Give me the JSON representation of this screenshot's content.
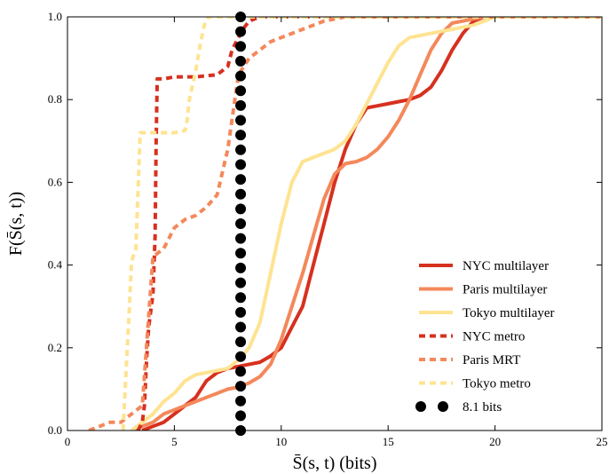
{
  "chart_data": {
    "type": "line",
    "xlabel": "S̄(s, t) (bits)",
    "ylabel": "F(S̄(s, t))",
    "xlim": [
      0,
      25
    ],
    "ylim": [
      0,
      1.0
    ],
    "xticks": [
      "0",
      "5",
      "10",
      "15",
      "20",
      "25"
    ],
    "yticks": [
      "0.0",
      "0.2",
      "0.4",
      "0.6",
      "0.8",
      "1.0"
    ],
    "grid": false,
    "legend_position": "lower-right",
    "series": [
      {
        "name": "NYC multilayer",
        "color": "#d7301f",
        "style": "solid",
        "x": [
          3.5,
          4.0,
          4.5,
          5.0,
          5.5,
          6.0,
          6.5,
          7.0,
          7.5,
          8.0,
          8.5,
          9.0,
          9.5,
          10.0,
          10.5,
          11.0,
          11.5,
          12.0,
          12.5,
          13.0,
          13.5,
          14.0,
          14.5,
          15.0,
          15.5,
          16.0,
          16.5,
          17.0,
          17.5,
          18.0,
          18.5,
          19.0,
          19.5,
          20.0,
          25.0
        ],
        "y": [
          0.0,
          0.01,
          0.02,
          0.04,
          0.06,
          0.08,
          0.12,
          0.14,
          0.15,
          0.155,
          0.16,
          0.165,
          0.18,
          0.2,
          0.25,
          0.3,
          0.4,
          0.5,
          0.6,
          0.68,
          0.74,
          0.78,
          0.785,
          0.79,
          0.795,
          0.8,
          0.81,
          0.83,
          0.87,
          0.92,
          0.96,
          0.99,
          1.0,
          1.0,
          1.0
        ]
      },
      {
        "name": "Paris multilayer",
        "color": "#f4885b",
        "style": "solid",
        "x": [
          3.0,
          3.5,
          4.0,
          4.5,
          5.0,
          5.5,
          6.0,
          6.5,
          7.0,
          7.5,
          8.0,
          8.5,
          9.0,
          9.5,
          10.0,
          10.5,
          11.0,
          11.5,
          12.0,
          12.5,
          13.0,
          13.5,
          14.0,
          14.5,
          15.0,
          15.5,
          16.0,
          16.5,
          17.0,
          17.5,
          18.0,
          18.5,
          19.0,
          19.5,
          20.0,
          25.0
        ],
        "y": [
          0.0,
          0.01,
          0.02,
          0.04,
          0.05,
          0.06,
          0.07,
          0.08,
          0.09,
          0.1,
          0.105,
          0.115,
          0.13,
          0.16,
          0.22,
          0.3,
          0.38,
          0.47,
          0.56,
          0.62,
          0.645,
          0.65,
          0.66,
          0.68,
          0.71,
          0.75,
          0.8,
          0.86,
          0.92,
          0.96,
          0.985,
          0.99,
          0.995,
          1.0,
          1.0,
          1.0
        ]
      },
      {
        "name": "Tokyo multilayer",
        "color": "#fee391",
        "style": "solid",
        "x": [
          3.0,
          3.5,
          4.0,
          4.5,
          5.0,
          5.5,
          6.0,
          6.5,
          7.0,
          7.5,
          8.0,
          8.5,
          9.0,
          9.5,
          10.0,
          10.5,
          11.0,
          11.5,
          12.0,
          12.5,
          13.0,
          13.5,
          14.0,
          14.5,
          15.0,
          15.5,
          16.0,
          16.5,
          17.0,
          17.5,
          18.0,
          18.5,
          19.0,
          19.5,
          20.0,
          25.0
        ],
        "y": [
          0.0,
          0.02,
          0.04,
          0.07,
          0.09,
          0.12,
          0.135,
          0.14,
          0.145,
          0.15,
          0.17,
          0.2,
          0.26,
          0.38,
          0.5,
          0.6,
          0.65,
          0.66,
          0.67,
          0.68,
          0.7,
          0.74,
          0.79,
          0.84,
          0.89,
          0.93,
          0.95,
          0.955,
          0.96,
          0.965,
          0.97,
          0.975,
          0.98,
          0.99,
          1.0,
          1.0
        ]
      },
      {
        "name": "NYC metro",
        "color": "#d7301f",
        "style": "dashed",
        "x": [
          3.3,
          3.5,
          3.6,
          3.7,
          3.8,
          4.0,
          4.05,
          4.1,
          4.15,
          4.2,
          4.3,
          4.5,
          5.0,
          6.0,
          7.0,
          7.5,
          7.7,
          8.0,
          8.2,
          8.5,
          9.0,
          10.0,
          25.0
        ],
        "y": [
          0.0,
          0.02,
          0.06,
          0.17,
          0.25,
          0.33,
          0.4,
          0.47,
          0.7,
          0.85,
          0.85,
          0.85,
          0.855,
          0.855,
          0.86,
          0.88,
          0.92,
          0.95,
          0.97,
          0.99,
          1.0,
          1.0,
          1.0
        ]
      },
      {
        "name": "Paris MRT",
        "color": "#f4885b",
        "style": "dashed",
        "x": [
          1.0,
          1.5,
          2.0,
          2.5,
          3.0,
          3.5,
          4.0,
          4.5,
          5.0,
          5.5,
          6.0,
          6.5,
          7.0,
          7.5,
          8.0,
          8.5,
          9.0,
          9.5,
          10.0,
          11.0,
          12.0,
          13.0,
          25.0
        ],
        "y": [
          0.0,
          0.01,
          0.02,
          0.02,
          0.04,
          0.06,
          0.42,
          0.44,
          0.49,
          0.51,
          0.52,
          0.54,
          0.57,
          0.68,
          0.86,
          0.9,
          0.92,
          0.94,
          0.95,
          0.97,
          0.99,
          1.0,
          1.0
        ]
      },
      {
        "name": "Tokyo metro",
        "color": "#fee391",
        "style": "dashed",
        "x": [
          2.6,
          2.7,
          2.8,
          2.9,
          3.0,
          3.2,
          3.4,
          3.5,
          4.0,
          5.0,
          5.5,
          5.6,
          5.7,
          6.0,
          6.2,
          6.4,
          6.6,
          7.0,
          25.0
        ],
        "y": [
          0.0,
          0.1,
          0.2,
          0.3,
          0.41,
          0.44,
          0.72,
          0.72,
          0.72,
          0.72,
          0.725,
          0.75,
          0.8,
          0.87,
          0.93,
          0.98,
          1.0,
          1.0,
          1.0
        ]
      }
    ],
    "reference_line": {
      "name": "8.1 bits",
      "x": 8.1,
      "color": "#000000"
    }
  }
}
